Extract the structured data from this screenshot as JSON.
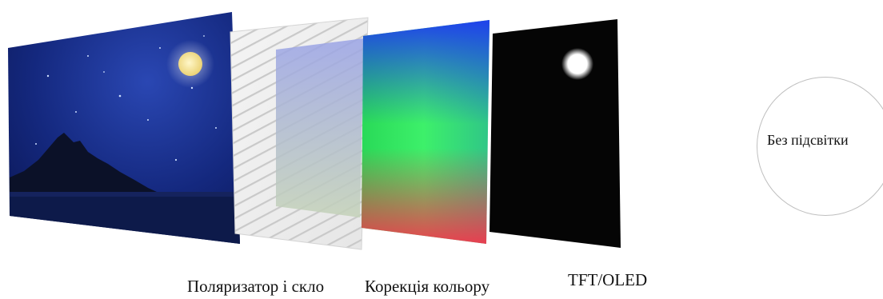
{
  "layers": {
    "polarizer_label": "Поляризатор і скло",
    "color_correction_label": "Корекція кольору",
    "tft_oled_label": "TFT/OLED"
  },
  "no_backlight": {
    "label": "Без підсвітки"
  },
  "colors": {
    "night_sky": "#0d1d66",
    "mountain": "#0a0f22",
    "moon": "#f5e9a8",
    "tft_panel": "#050505",
    "circle_border": "#bfbfbf"
  }
}
